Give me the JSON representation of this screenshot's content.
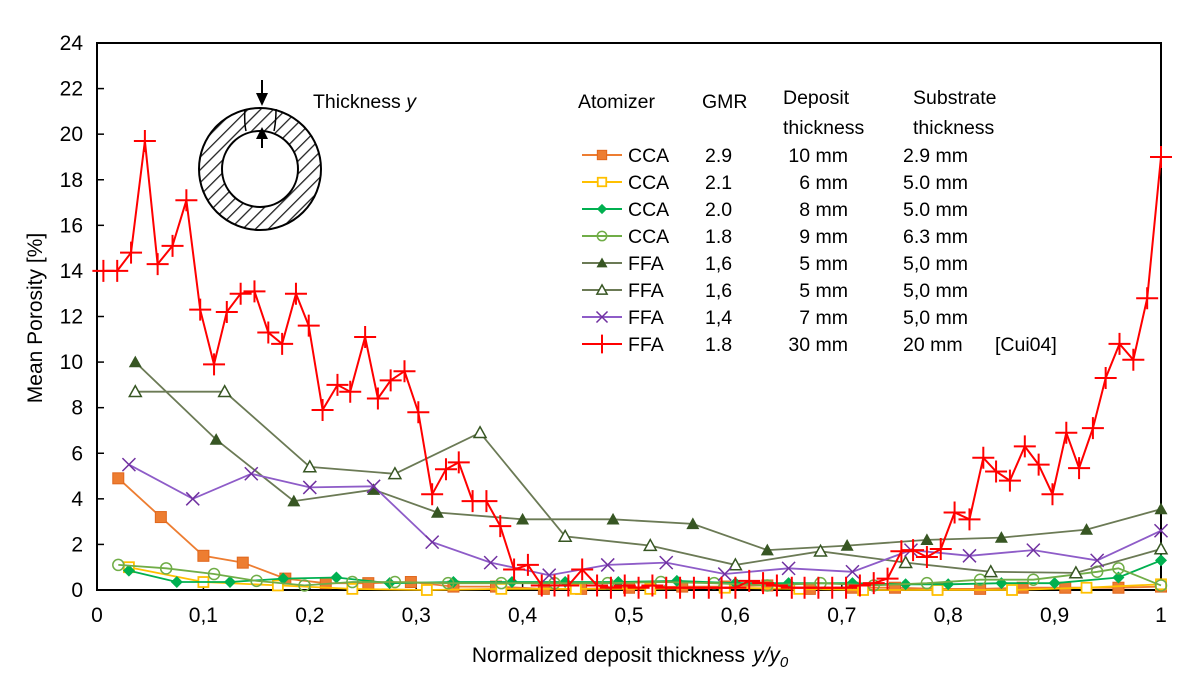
{
  "chart_data": {
    "type": "line",
    "title": "",
    "xlabel": "Normalized deposit thickness",
    "xlabel_italic": "y/y",
    "xlabel_sub": "0",
    "ylabel": "Mean Porosity [%]",
    "xlim": [
      0,
      1
    ],
    "ylim": [
      0,
      24
    ],
    "x_ticks": [
      0,
      0.1,
      0.2,
      0.3,
      0.4,
      0.5,
      0.6,
      0.7,
      0.8,
      0.9,
      1
    ],
    "x_tick_labels": [
      "0",
      "0,1",
      "0,2",
      "0,3",
      "0,4",
      "0,5",
      "0,6",
      "0,7",
      "0,8",
      "0,9",
      "1"
    ],
    "y_ticks": [
      0,
      2,
      4,
      6,
      8,
      10,
      12,
      14,
      16,
      18,
      20,
      22,
      24
    ],
    "y_tick_labels": [
      "0",
      "2",
      "4",
      "6",
      "8",
      "10",
      "12",
      "14",
      "16",
      "18",
      "20",
      "22",
      "24"
    ],
    "grid": false,
    "inset": {
      "label": "Thickness",
      "label_italic": "y"
    },
    "legend": {
      "placement": "top-right",
      "headers": {
        "atomizer": "Atomizer",
        "gmr": "GMR",
        "deposit_line1": "Deposit",
        "deposit_line2": "thickness",
        "substrate_line1": "Substrate",
        "substrate_line2": "thickness"
      }
    },
    "series": [
      {
        "name": "CCA GMR 2.9",
        "atomizer": "CCA",
        "gmr": "2.9",
        "deposit": "10 mm",
        "substrate": "2.9 mm",
        "ref": "",
        "color": "#ed7d31",
        "marker": "square-filled",
        "x": [
          0.02,
          0.06,
          0.1,
          0.137,
          0.177,
          0.215,
          0.255,
          0.295,
          0.335,
          0.375,
          0.42,
          0.455,
          0.5,
          0.55,
          0.59,
          0.63,
          0.67,
          0.71,
          0.75,
          0.79,
          0.83,
          0.87,
          0.91,
          0.96,
          1.0
        ],
        "y": [
          4.9,
          3.2,
          1.5,
          1.2,
          0.5,
          0.3,
          0.3,
          0.35,
          0.15,
          0.15,
          0.05,
          0.05,
          0.1,
          0.15,
          0.15,
          0.2,
          0.05,
          0.1,
          0.1,
          0.05,
          0.05,
          0.1,
          0.1,
          0.1,
          0.15
        ]
      },
      {
        "name": "CCA GMR 2.1",
        "atomizer": "CCA",
        "gmr": "2.1",
        "deposit": "6 mm",
        "substrate": "5.0 mm",
        "ref": "",
        "color": "#ffc000",
        "marker": "square-open",
        "x": [
          0.03,
          0.1,
          0.17,
          0.24,
          0.31,
          0.38,
          0.45,
          0.52,
          0.59,
          0.66,
          0.72,
          0.79,
          0.86,
          0.93,
          1.0
        ],
        "y": [
          1.0,
          0.35,
          0.2,
          0.05,
          0.0,
          0.05,
          0.05,
          0.05,
          0.1,
          0.05,
          0.0,
          0.0,
          0.0,
          0.1,
          0.25
        ]
      },
      {
        "name": "CCA GMR 2.0",
        "atomizer": "CCA",
        "gmr": "2.0",
        "deposit": "8 mm",
        "substrate": "5.0 mm",
        "ref": "",
        "color": "#00b050",
        "marker": "diamond-filled",
        "x": [
          0.03,
          0.075,
          0.125,
          0.175,
          0.225,
          0.275,
          0.335,
          0.39,
          0.44,
          0.49,
          0.545,
          0.6,
          0.65,
          0.71,
          0.76,
          0.8,
          0.85,
          0.9,
          0.96,
          1.0
        ],
        "y": [
          0.85,
          0.35,
          0.35,
          0.5,
          0.55,
          0.3,
          0.35,
          0.35,
          0.35,
          0.35,
          0.4,
          0.3,
          0.3,
          0.3,
          0.25,
          0.25,
          0.3,
          0.3,
          0.55,
          1.3
        ]
      },
      {
        "name": "CCA GMR 1.8",
        "atomizer": "CCA",
        "gmr": "1.8",
        "deposit": "9 mm",
        "substrate": "6.3 mm",
        "ref": "",
        "color": "#70ad47",
        "marker": "circle-open",
        "x": [
          0.02,
          0.065,
          0.11,
          0.15,
          0.195,
          0.24,
          0.28,
          0.33,
          0.38,
          0.43,
          0.48,
          0.53,
          0.58,
          0.63,
          0.68,
          0.73,
          0.78,
          0.83,
          0.88,
          0.94,
          0.96,
          1.0
        ],
        "y": [
          1.1,
          0.95,
          0.7,
          0.4,
          0.2,
          0.35,
          0.35,
          0.3,
          0.3,
          0.3,
          0.3,
          0.35,
          0.3,
          0.2,
          0.3,
          0.2,
          0.3,
          0.45,
          0.45,
          0.8,
          0.95,
          0.2
        ]
      },
      {
        "name": "FFA GMR 1,6 filled",
        "atomizer": "FFA",
        "gmr": "1,6",
        "deposit": "5 mm",
        "substrate": "5,0 mm",
        "ref": "",
        "color": "#375623",
        "line_color": "#6b7a55",
        "marker": "triangle-filled",
        "x": [
          0.036,
          0.112,
          0.185,
          0.26,
          0.32,
          0.4,
          0.485,
          0.56,
          0.63,
          0.705,
          0.78,
          0.85,
          0.93,
          1.0
        ],
        "y": [
          10.0,
          6.6,
          3.9,
          4.4,
          3.4,
          3.1,
          3.1,
          2.9,
          1.75,
          1.95,
          2.2,
          2.3,
          2.65,
          3.55
        ]
      },
      {
        "name": "FFA GMR 1,6 open",
        "atomizer": "FFA",
        "gmr": "1,6",
        "deposit": "5 mm",
        "substrate": "5,0 mm",
        "ref": "",
        "color": "#375623",
        "line_color": "#6b7a55",
        "marker": "triangle-open",
        "x": [
          0.036,
          0.12,
          0.2,
          0.28,
          0.36,
          0.44,
          0.52,
          0.6,
          0.68,
          0.76,
          0.84,
          0.92,
          1.0
        ],
        "y": [
          8.7,
          8.7,
          5.4,
          5.1,
          6.9,
          2.35,
          1.95,
          1.1,
          1.7,
          1.2,
          0.8,
          0.75,
          1.8
        ]
      },
      {
        "name": "FFA GMR 1,4",
        "atomizer": "FFA",
        "gmr": "1,4",
        "deposit": "7 mm",
        "substrate": "5,0 mm",
        "ref": "",
        "color": "#7030a0",
        "line_color": "#8e5cc8",
        "marker": "x",
        "x": [
          0.03,
          0.09,
          0.145,
          0.2,
          0.26,
          0.315,
          0.37,
          0.425,
          0.48,
          0.535,
          0.59,
          0.65,
          0.71,
          0.765,
          0.82,
          0.88,
          0.94,
          1.0
        ],
        "y": [
          5.5,
          4.0,
          5.1,
          4.5,
          4.55,
          2.1,
          1.2,
          0.65,
          1.1,
          1.2,
          0.7,
          0.95,
          0.8,
          1.75,
          1.5,
          1.75,
          1.3,
          2.6
        ]
      },
      {
        "name": "FFA GMR 1.8 [Cui04]",
        "atomizer": "FFA",
        "gmr": "1.8",
        "deposit": "30 mm",
        "substrate": "20 mm",
        "ref": "[Cui04]",
        "color": "#ff0000",
        "marker": "plus",
        "x": [
          0.006,
          0.019,
          0.032,
          0.045,
          0.057,
          0.071,
          0.084,
          0.097,
          0.11,
          0.122,
          0.135,
          0.148,
          0.161,
          0.174,
          0.187,
          0.199,
          0.212,
          0.226,
          0.238,
          0.252,
          0.264,
          0.276,
          0.289,
          0.302,
          0.315,
          0.328,
          0.34,
          0.353,
          0.366,
          0.379,
          0.392,
          0.405,
          0.418,
          0.43,
          0.443,
          0.456,
          0.47,
          0.483,
          0.496,
          0.509,
          0.522,
          0.535,
          0.548,
          0.561,
          0.575,
          0.587,
          0.6,
          0.613,
          0.626,
          0.639,
          0.653,
          0.665,
          0.678,
          0.691,
          0.704,
          0.717,
          0.73,
          0.743,
          0.756,
          0.767,
          0.78,
          0.793,
          0.806,
          0.82,
          0.833,
          0.845,
          0.858,
          0.872,
          0.885,
          0.898,
          0.911,
          0.923,
          0.936,
          0.948,
          0.961,
          0.974,
          0.987,
          1.0
        ],
        "y": [
          14.0,
          14.0,
          14.8,
          19.7,
          14.3,
          15.1,
          17.1,
          12.3,
          9.9,
          12.2,
          13.0,
          13.1,
          11.3,
          10.8,
          13.0,
          11.6,
          7.9,
          9.0,
          8.7,
          11.1,
          8.4,
          9.2,
          9.6,
          7.8,
          4.2,
          5.3,
          5.6,
          3.9,
          3.9,
          2.8,
          0.9,
          1.1,
          0.2,
          0.2,
          0.2,
          0.9,
          0.2,
          0.1,
          0.2,
          0.1,
          0.2,
          0.1,
          0.1,
          0.1,
          0.1,
          0.1,
          0.1,
          0.4,
          0.3,
          0.2,
          0.1,
          0.1,
          0.1,
          0.1,
          0.1,
          0.2,
          0.3,
          0.5,
          1.7,
          1.75,
          1.45,
          1.8,
          3.4,
          3.1,
          5.8,
          5.2,
          4.8,
          6.3,
          5.5,
          4.2,
          6.9,
          5.35,
          7.1,
          9.3,
          10.8,
          10.1,
          12.8,
          19.0
        ]
      }
    ]
  }
}
